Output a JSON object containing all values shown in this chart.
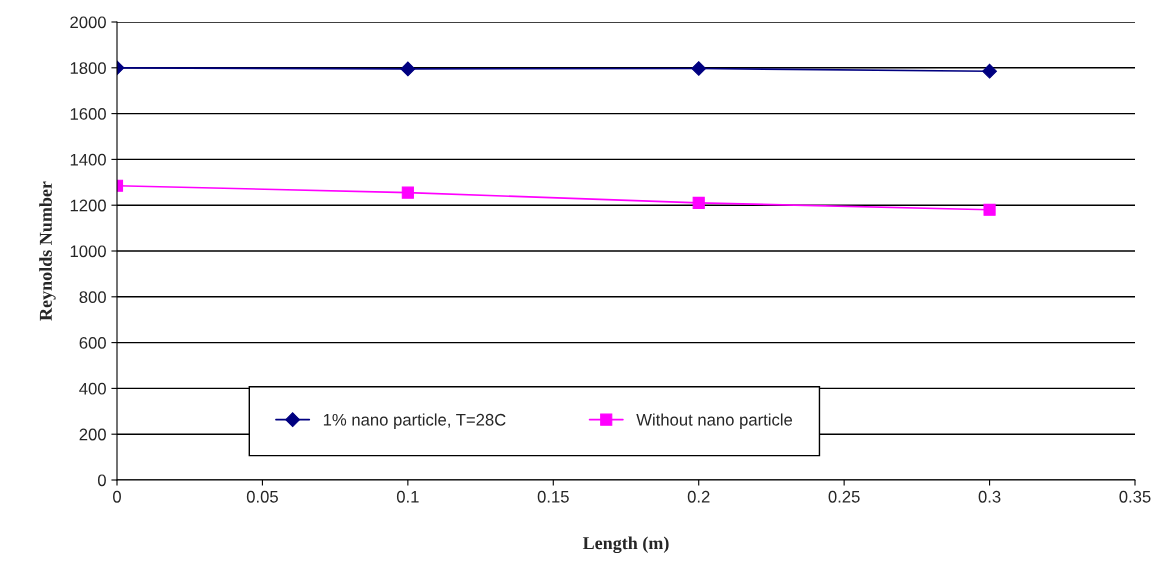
{
  "chart_data": {
    "type": "line",
    "xlabel": "Length (m)",
    "ylabel": "Reynolds Number",
    "x": [
      0,
      0.1,
      0.2,
      0.3
    ],
    "series": [
      {
        "name": "1% nano particle, T=28C",
        "color": "#000080",
        "marker": "diamond",
        "values": [
          1800,
          1795,
          1797,
          1785
        ]
      },
      {
        "name": "Without nano particle",
        "color": "#ff00ff",
        "marker": "square",
        "values": [
          1285,
          1255,
          1210,
          1180
        ]
      }
    ],
    "xlim": [
      0,
      0.35
    ],
    "xticks": [
      0,
      0.05,
      0.1,
      0.15,
      0.2,
      0.25,
      0.3,
      0.35
    ],
    "ylim": [
      0,
      2000
    ],
    "yticks": [
      0,
      200,
      400,
      600,
      800,
      1000,
      1200,
      1400,
      1600,
      1800,
      2000
    ],
    "grid": "y",
    "legend": "bottom",
    "line_style": "solid"
  }
}
